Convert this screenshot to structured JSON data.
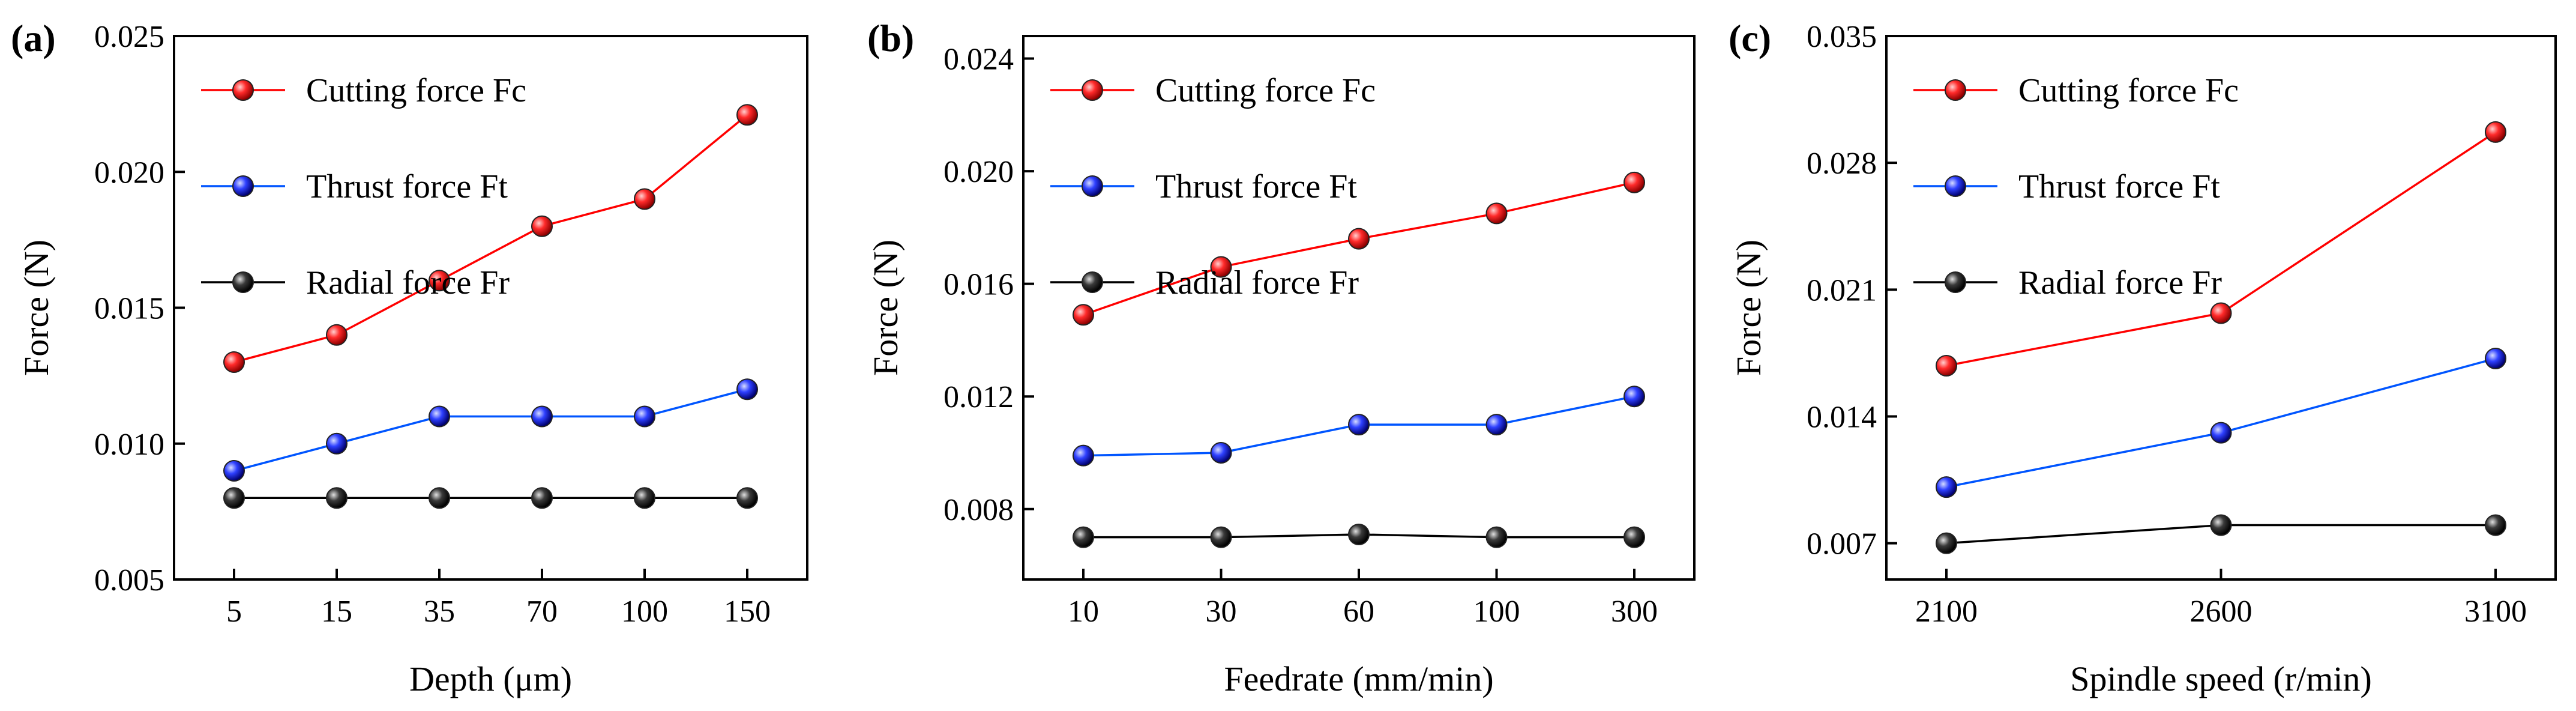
{
  "chart_data": [
    {
      "panel_label": "(a)",
      "type": "line",
      "xlabel": "Depth (μm)",
      "ylabel": "Force (N)",
      "categories": [
        "5",
        "15",
        "35",
        "70",
        "100",
        "150"
      ],
      "ylim": [
        0.005,
        0.025
      ],
      "yticks": [
        "0.005",
        "0.010",
        "0.015",
        "0.020",
        "0.025"
      ],
      "ytick_values": [
        0.005,
        0.01,
        0.015,
        0.02,
        0.025
      ],
      "legend_position": "top-left",
      "series": [
        {
          "name": "Cutting force Fc",
          "color": "#ff0000",
          "values": [
            0.013,
            0.014,
            0.016,
            0.018,
            0.019,
            0.0221
          ]
        },
        {
          "name": "Thrust force Ft",
          "color": "#0055ff",
          "values": [
            0.009,
            0.01,
            0.011,
            0.011,
            0.011,
            0.012
          ]
        },
        {
          "name": "Radial force Fr",
          "color": "#000000",
          "values": [
            0.008,
            0.008,
            0.008,
            0.008,
            0.008,
            0.008
          ]
        }
      ]
    },
    {
      "panel_label": "(b)",
      "type": "line",
      "xlabel": "Feedrate (mm/min)",
      "ylabel": "Force (N)",
      "categories": [
        "10",
        "30",
        "60",
        "100",
        "300"
      ],
      "ylim": [
        0.0055,
        0.0248
      ],
      "yticks": [
        "0.008",
        "0.012",
        "0.016",
        "0.020",
        "0.024"
      ],
      "ytick_values": [
        0.008,
        0.012,
        0.016,
        0.02,
        0.024
      ],
      "legend_position": "top-left",
      "series": [
        {
          "name": "Cutting force Fc",
          "color": "#ff0000",
          "values": [
            0.0149,
            0.0166,
            0.0176,
            0.0185,
            0.0196
          ]
        },
        {
          "name": "Thrust force Ft",
          "color": "#0055ff",
          "values": [
            0.0099,
            0.01,
            0.011,
            0.011,
            0.012
          ]
        },
        {
          "name": "Radial force Fr",
          "color": "#000000",
          "values": [
            0.007,
            0.007,
            0.0071,
            0.007,
            0.007
          ]
        }
      ]
    },
    {
      "panel_label": "(c)",
      "type": "line",
      "xlabel": "Spindle speed (r/min)",
      "ylabel": "Force (N)",
      "categories": [
        "2100",
        "2600",
        "3100"
      ],
      "ylim": [
        0.005,
        0.035
      ],
      "yticks": [
        "0.007",
        "0.014",
        "0.021",
        "0.028",
        "0.035"
      ],
      "ytick_values": [
        0.007,
        0.014,
        0.021,
        0.028,
        0.035
      ],
      "legend_position": "top-left",
      "series": [
        {
          "name": "Cutting force Fc",
          "color": "#ff0000",
          "values": [
            0.0168,
            0.0197,
            0.0297
          ]
        },
        {
          "name": "Thrust force Ft",
          "color": "#0055ff",
          "values": [
            0.0101,
            0.0131,
            0.0172
          ]
        },
        {
          "name": "Radial force Fr",
          "color": "#000000",
          "values": [
            0.007,
            0.008,
            0.008
          ]
        }
      ]
    }
  ]
}
